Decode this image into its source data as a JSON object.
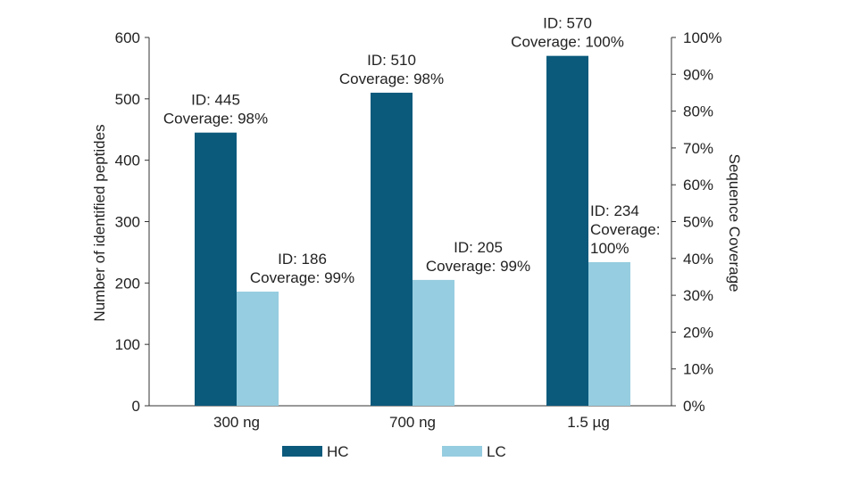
{
  "chart_data": {
    "type": "bar",
    "categories": [
      "300 ng",
      "700 ng",
      "1.5 µg"
    ],
    "series": [
      {
        "name": "HC",
        "values": [
          445,
          510,
          570
        ],
        "color": "#0b5a7c",
        "labels": [
          [
            "ID: 445",
            "Coverage: 98%"
          ],
          [
            "ID: 510",
            "Coverage: 98%"
          ],
          [
            "ID: 570",
            "Coverage: 100%"
          ]
        ]
      },
      {
        "name": "LC",
        "values": [
          186,
          205,
          234
        ],
        "color": "#96cde0",
        "labels": [
          [
            "ID: 186",
            "Coverage: 99%"
          ],
          [
            "ID: 205",
            "Coverage: 99%"
          ],
          [
            "ID: 234",
            "Coverage:",
            "100%"
          ]
        ]
      }
    ],
    "ylabel": "Number of identified peptides",
    "y2label": "Sequence Coverage",
    "ylim": [
      0,
      600
    ],
    "yticks": [
      "0",
      "100",
      "200",
      "300",
      "400",
      "500",
      "600"
    ],
    "y2lim": [
      0,
      100
    ],
    "y2ticks": [
      "0%",
      "10%",
      "20%",
      "30%",
      "40%",
      "50%",
      "60%",
      "70%",
      "80%",
      "90%",
      "100%"
    ],
    "grid": false,
    "legend": "bottom"
  }
}
